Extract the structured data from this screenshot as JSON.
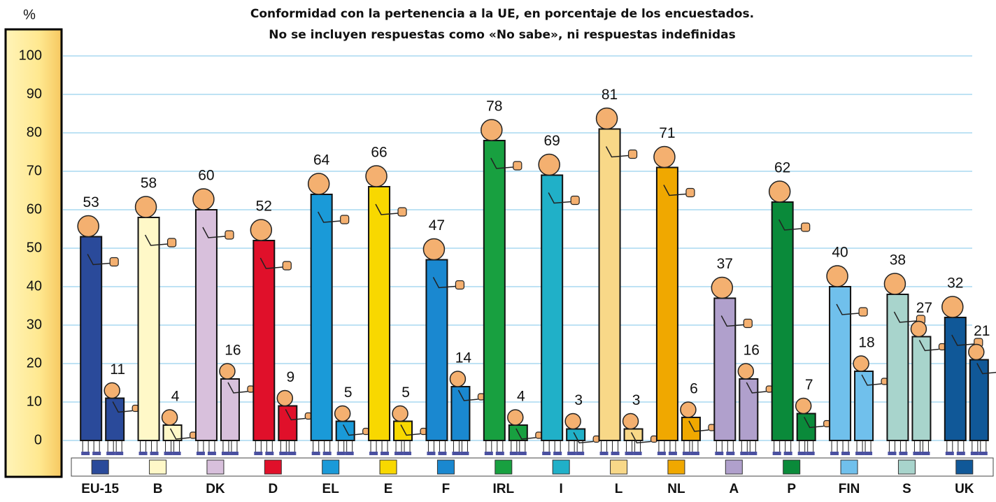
{
  "chart_data": {
    "type": "bar",
    "title": [
      "Conformidad con la pertenencia a la UE, en porcentaje de los encuestados.",
      "No se incluyen respuestas como «No sabe», ni respuestas indefinidas"
    ],
    "y_label": "%",
    "categories": [
      "EU-15",
      "B",
      "DK",
      "D",
      "EL",
      "E",
      "F",
      "IRL",
      "I",
      "L",
      "NL",
      "A",
      "P",
      "FIN",
      "S",
      "UK"
    ],
    "colors": [
      "#2a4a9a",
      "#fff8c8",
      "#d8c0dc",
      "#e0102a",
      "#1a9ad8",
      "#f8d800",
      "#1a88d0",
      "#18a040",
      "#20b0c8",
      "#f8d888",
      "#f0a800",
      "#b0a0cc",
      "#0a8a3a",
      "#70c0ec",
      "#a8d4cc",
      "#105898"
    ],
    "series": [
      {
        "values": [
          53,
          58,
          60,
          52,
          64,
          66,
          47,
          78,
          69,
          81,
          71,
          37,
          62,
          40,
          38,
          32
        ]
      },
      {
        "values": [
          11,
          4,
          16,
          9,
          5,
          5,
          14,
          4,
          3,
          3,
          6,
          16,
          7,
          18,
          27,
          21
        ]
      }
    ],
    "ylim": [
      0,
      100
    ],
    "yticks": [
      0,
      10,
      20,
      30,
      40,
      50,
      60,
      70,
      80,
      90,
      100
    ],
    "grid": true
  }
}
